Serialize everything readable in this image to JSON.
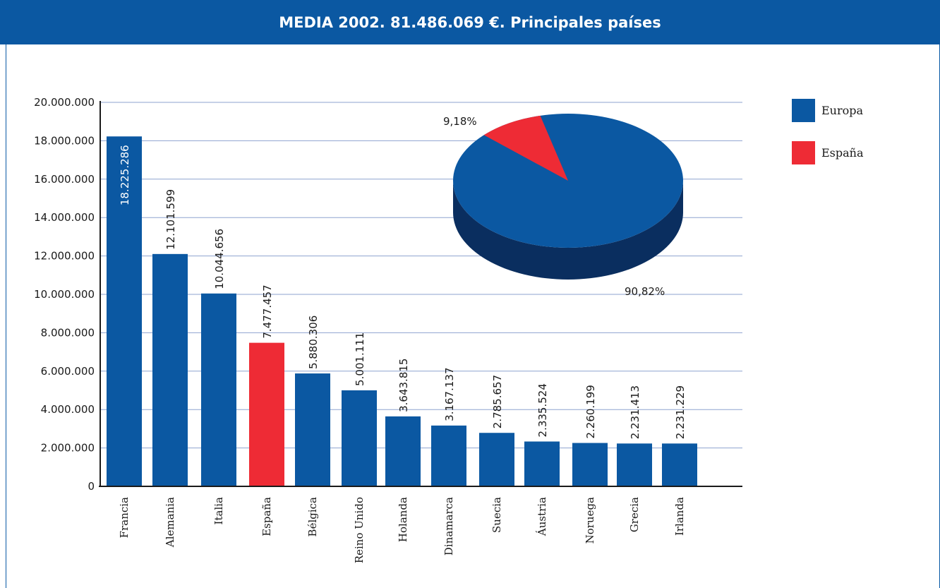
{
  "header": {
    "title": "MEDIA 2002. 81.486.069 €. Principales países"
  },
  "colors": {
    "europa": "#0b58a2",
    "espana": "#ee2b35",
    "grid": "#8ea3cf",
    "axis": "#1a1a1a",
    "pie_side": "#0a2e5f"
  },
  "chart_data": [
    {
      "type": "bar",
      "categories": [
        "Francia",
        "Alemania",
        "Italia",
        "España",
        "Bélgica",
        "Reino Unido",
        "Holanda",
        "Dinamarca",
        "Suecia",
        "Áustria",
        "Noruega",
        "Grecia",
        "Irlanda"
      ],
      "values": [
        18225286,
        12101599,
        10044656,
        7477457,
        5880306,
        5001111,
        3643815,
        3167137,
        2785657,
        2335524,
        2260199,
        2231413,
        2231229
      ],
      "value_labels": [
        "18.225.286",
        "12.101.599",
        "10.044.656",
        "7.477.457",
        "5.880.306",
        "5.001.111",
        "3.643.815",
        "3.167.137",
        "2.785.657",
        "2.335.524",
        "2.260.199",
        "2.231.413",
        "2.231.229"
      ],
      "highlight": "España",
      "ylim": [
        0,
        20000000
      ],
      "yticks": [
        0,
        2000000,
        4000000,
        6000000,
        8000000,
        10000000,
        12000000,
        14000000,
        16000000,
        18000000,
        20000000
      ],
      "ytick_labels": [
        "0",
        "2.000.000",
        "4.000.000",
        "6.000.000",
        "8.000.000",
        "10.000.000",
        "12.000.000",
        "14.000.000",
        "16.000.000",
        "18.000.000",
        "20.000.000"
      ],
      "grid": true
    },
    {
      "type": "pie",
      "slices": [
        {
          "name": "Europa",
          "value": 90.82,
          "label": "90,82%"
        },
        {
          "name": "España",
          "value": 9.18,
          "label": "9,18%"
        }
      ],
      "legend": {
        "placement": "top-right",
        "entries": [
          "Europa",
          "España"
        ]
      }
    }
  ]
}
